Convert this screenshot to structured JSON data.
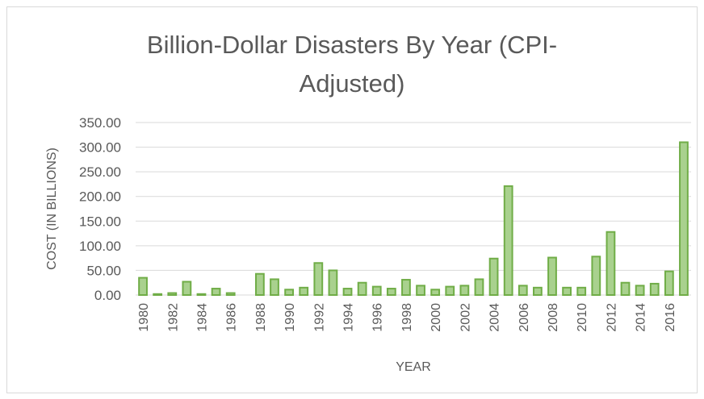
{
  "chart_data": {
    "type": "bar",
    "title_line1": "Billion-Dollar  Disasters  By Year  (CPI-",
    "title_line2": "Adjusted)",
    "xlabel": "YEAR",
    "ylabel": "COST (IN BILLIONS)",
    "ylim": [
      0,
      350
    ],
    "yticks": [
      "0.00",
      "50.00",
      "100.00",
      "150.00",
      "200.00",
      "250.00",
      "300.00",
      "350.00"
    ],
    "grid": true,
    "legend": "none",
    "bar_fill": "#a9d18e",
    "bar_stroke": "#70ad47",
    "gridline_color": "#d9d9d9",
    "categories": [
      "1980",
      "1981",
      "1982",
      "1983",
      "1984",
      "1985",
      "1986",
      "1987",
      "1988",
      "1989",
      "1990",
      "1991",
      "1992",
      "1993",
      "1994",
      "1995",
      "1996",
      "1997",
      "1998",
      "1999",
      "2000",
      "2001",
      "2002",
      "2003",
      "2004",
      "2005",
      "2006",
      "2007",
      "2008",
      "2009",
      "2010",
      "2011",
      "2012",
      "2013",
      "2014",
      "2015",
      "2016",
      "2017"
    ],
    "x_tick_labels": [
      "1980",
      "",
      "1982",
      "",
      "1984",
      "",
      "1986",
      "",
      "1988",
      "",
      "1990",
      "",
      "1992",
      "",
      "1994",
      "",
      "1996",
      "",
      "1998",
      "",
      "2000",
      "",
      "2002",
      "",
      "2004",
      "",
      "2006",
      "",
      "2008",
      "",
      "2010",
      "",
      "2012",
      "",
      "2014",
      "",
      "2016",
      ""
    ],
    "values": [
      35,
      2,
      4,
      27,
      2,
      13,
      4,
      0,
      43,
      32,
      11,
      15,
      65,
      50,
      13,
      25,
      17,
      13,
      31,
      19,
      11,
      17,
      19,
      32,
      74,
      221,
      19,
      15,
      76,
      15,
      15,
      78,
      128,
      25,
      19,
      23,
      48,
      310
    ]
  }
}
